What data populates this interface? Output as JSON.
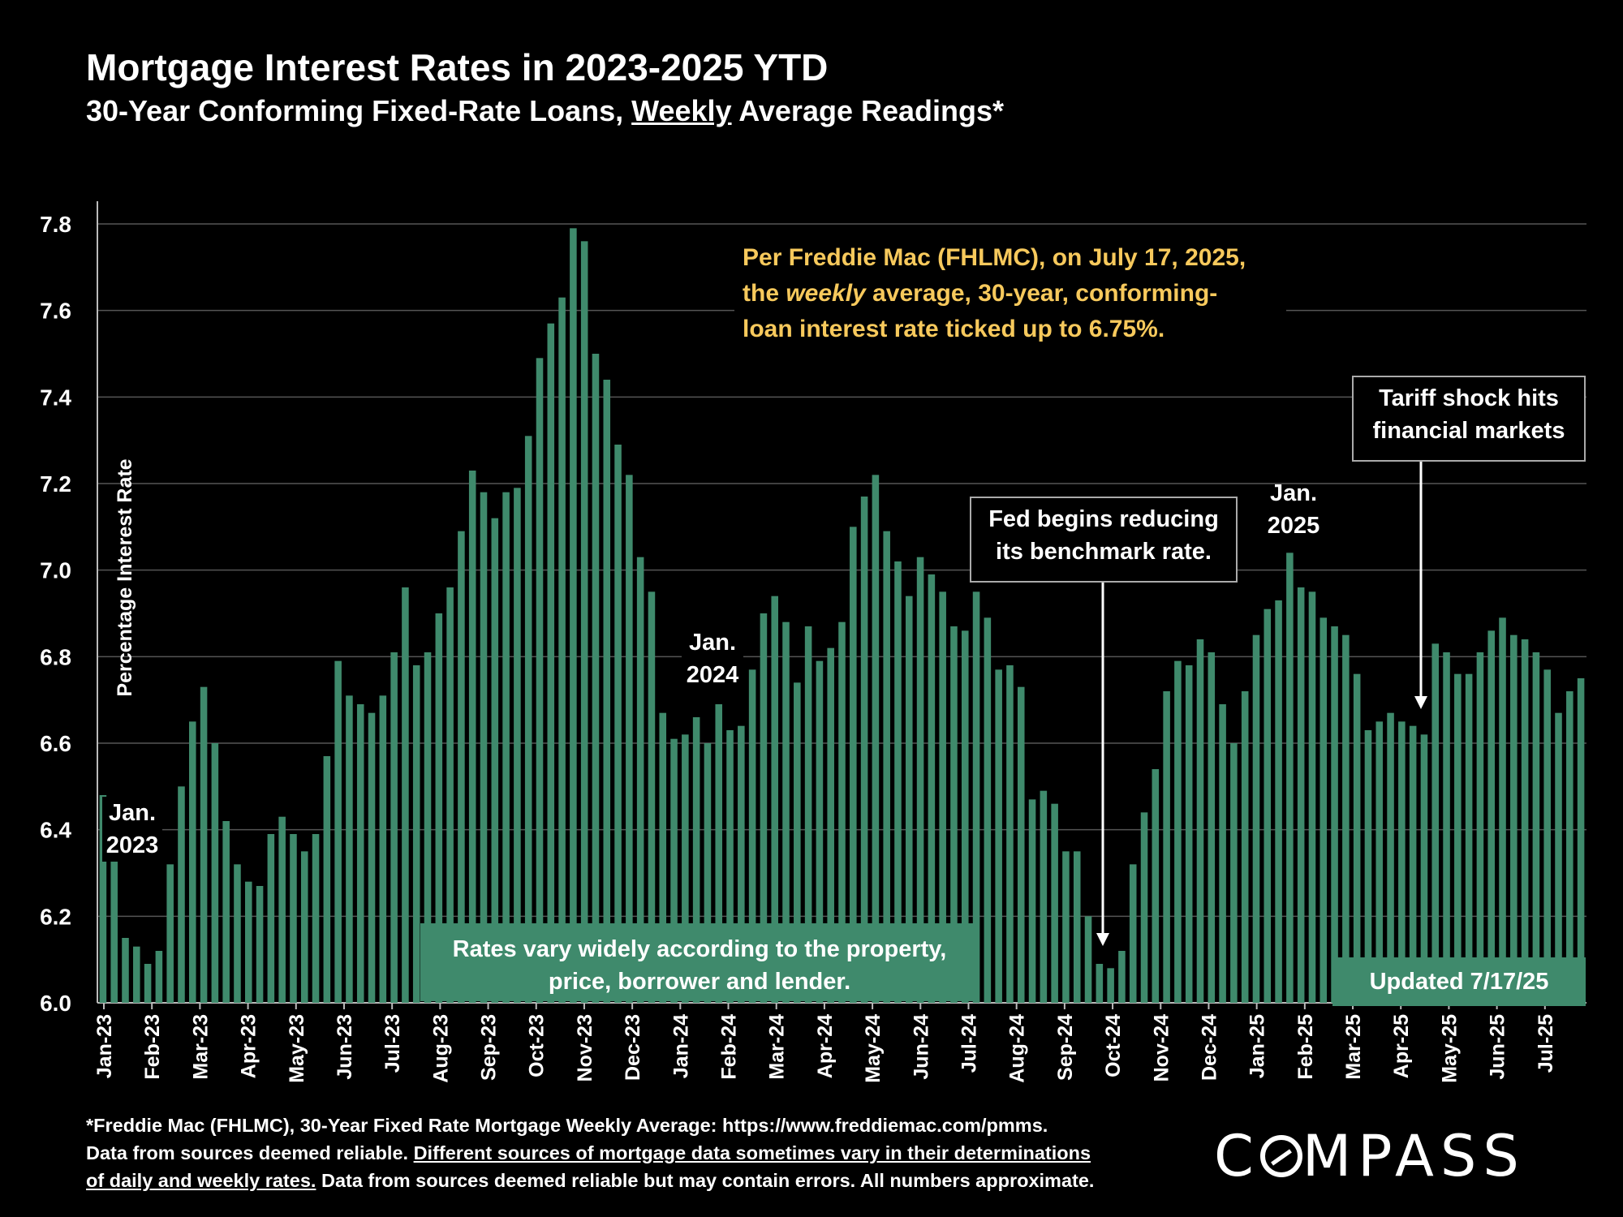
{
  "title": "Mortgage Interest Rates in 2023-2025 YTD",
  "subtitle_pre": "30-Year Conforming Fixed-Rate Loans, ",
  "subtitle_underlined": "Weekly",
  "subtitle_post": " Average Readings*",
  "note": {
    "line1": "Per Freddie Mac (FHLMC), on July 17, 2025,",
    "line2_pre": "the ",
    "line2_em": "weekly",
    "line2_post": " average, 30-year, conforming-",
    "line3": "loan interest rate ticked up to 6.75%.",
    "color": "#f7c95c"
  },
  "callouts": {
    "fed": [
      "Fed begins reducing",
      "its benchmark rate."
    ],
    "tariff": [
      "Tariff shock hits",
      "financial markets"
    ]
  },
  "annotations": {
    "jan2023": [
      "Jan.",
      "2023"
    ],
    "jan2024": [
      "Jan.",
      "2024"
    ],
    "jan2025": [
      "Jan.",
      "2025"
    ]
  },
  "rates_box": [
    "Rates vary widely according to the property,",
    "price, borrower and lender."
  ],
  "updated_box": "Updated 7/17/25",
  "footer": {
    "line1": "*Freddie Mac (FHLMC), 30-Year Fixed Rate Mortgage Weekly Average:  https://www.freddiemac.com/pmms.",
    "line2_pre": "Data from sources deemed reliable. ",
    "line2_underlined": "Different sources of mortgage data sometimes vary in their determinations",
    "line3_underlined": "of daily and weekly rates.",
    "line3_post": " Data from sources deemed reliable but may contain errors. All numbers approximate."
  },
  "logo": {
    "pre": "C",
    "post": "MPASS"
  },
  "colors": {
    "bar": "#3f8a6c",
    "grid": "#555555",
    "background": "#000000"
  },
  "chart_data": {
    "type": "bar",
    "ylabel": "Percentage Interest  Rate",
    "ylim": [
      6.0,
      7.8
    ],
    "yticks": [
      "6.0",
      "6.2",
      "6.4",
      "6.6",
      "6.8",
      "7.0",
      "7.2",
      "7.4",
      "7.6",
      "7.8"
    ],
    "grid": true,
    "month_labels": [
      "Jan-23",
      "Feb-23",
      "Mar-23",
      "Apr-23",
      "May-23",
      "Jun-23",
      "Jul-23",
      "Aug-23",
      "Sep-23",
      "Oct-23",
      "Nov-23",
      "Dec-23",
      "Jan-24",
      "Feb-24",
      "Mar-24",
      "Apr-24",
      "May-24",
      "Jun-24",
      "Jul-24",
      "Aug-24",
      "Sep-24",
      "Oct-24",
      "Nov-24",
      "Dec-24",
      "Jan-25",
      "Feb-25",
      "Mar-25",
      "Apr-25",
      "May-25",
      "Jun-25",
      "Jul-25"
    ],
    "series": [
      {
        "values": [
          6.48,
          6.33,
          6.15,
          6.13,
          6.09,
          6.12,
          6.32,
          6.5,
          6.65,
          6.73,
          6.6,
          6.42,
          6.32,
          6.28,
          6.27,
          6.39,
          6.43,
          6.39,
          6.35,
          6.39,
          6.57,
          6.79,
          6.71,
          6.69,
          6.67,
          6.71,
          6.81,
          6.96,
          6.78,
          6.81,
          6.9,
          6.96,
          7.09,
          7.23,
          7.18,
          7.12,
          7.18,
          7.19,
          7.31,
          7.49,
          7.57,
          7.63,
          7.79,
          7.76,
          7.5,
          7.44,
          7.29,
          7.22,
          7.03,
          6.95,
          6.67,
          6.61,
          6.62,
          6.66,
          6.6,
          6.69,
          6.63,
          6.64,
          6.77,
          6.9,
          6.94,
          6.88,
          6.74,
          6.87,
          6.79,
          6.82,
          6.88,
          7.1,
          7.17,
          7.22,
          7.09,
          7.02,
          6.94,
          7.03,
          6.99,
          6.95,
          6.87,
          6.86,
          6.95,
          6.89,
          6.77,
          6.78,
          6.73,
          6.47,
          6.49,
          6.46,
          6.35,
          6.35,
          6.2,
          6.09,
          6.08,
          6.12,
          6.32,
          6.44,
          6.54,
          6.72,
          6.79,
          6.78,
          6.84,
          6.81,
          6.69,
          6.6,
          6.72,
          6.85,
          6.91,
          6.93,
          7.04,
          6.96,
          6.95,
          6.89,
          6.87,
          6.85,
          6.76,
          6.63,
          6.65,
          6.67,
          6.65,
          6.64,
          6.62,
          6.83,
          6.81,
          6.76,
          6.76,
          6.81,
          6.86,
          6.89,
          6.85,
          6.84,
          6.81,
          6.77,
          6.67,
          6.72,
          6.75
        ]
      }
    ]
  }
}
